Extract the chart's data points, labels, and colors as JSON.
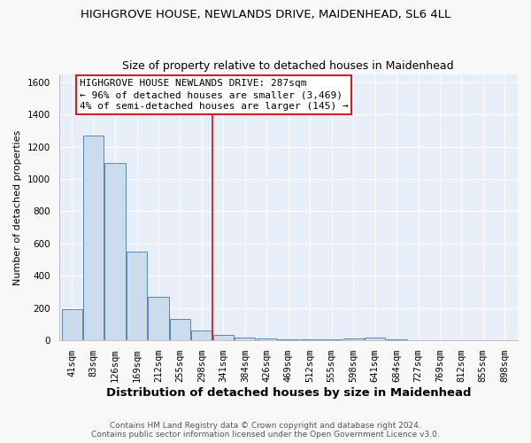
{
  "title1": "HIGHGROVE HOUSE, NEWLANDS DRIVE, MAIDENHEAD, SL6 4LL",
  "title2": "Size of property relative to detached houses in Maidenhead",
  "xlabel": "Distribution of detached houses by size in Maidenhead",
  "ylabel": "Number of detached properties",
  "footer1": "Contains HM Land Registry data © Crown copyright and database right 2024.",
  "footer2": "Contains public sector information licensed under the Open Government Licence v3.0.",
  "bar_labels": [
    "41sqm",
    "83sqm",
    "126sqm",
    "169sqm",
    "212sqm",
    "255sqm",
    "298sqm",
    "341sqm",
    "384sqm",
    "426sqm",
    "469sqm",
    "512sqm",
    "555sqm",
    "598sqm",
    "641sqm",
    "684sqm",
    "727sqm",
    "769sqm",
    "812sqm",
    "855sqm",
    "898sqm"
  ],
  "bar_values": [
    195,
    1270,
    1100,
    550,
    270,
    135,
    60,
    35,
    18,
    10,
    5,
    5,
    5,
    10,
    15,
    5,
    0,
    0,
    0,
    0,
    0
  ],
  "bar_color": "#ccdcec",
  "bar_edge_color": "#5588bb",
  "red_line_x": 6.5,
  "annotation_title": "HIGHGROVE HOUSE NEWLANDS DRIVE: 287sqm",
  "annotation_line1": "← 96% of detached houses are smaller (3,469)",
  "annotation_line2": "4% of semi-detached houses are larger (145) →",
  "ylim": [
    0,
    1650
  ],
  "yticks": [
    0,
    200,
    400,
    600,
    800,
    1000,
    1200,
    1400,
    1600
  ],
  "fig_bg_color": "#f8f8f8",
  "plot_bg_color": "#e8eef8",
  "grid_color": "#ffffff",
  "annotation_box_color": "#ffffff",
  "annotation_border_color": "#cc2222",
  "red_line_color": "#cc2222",
  "title_fontsize": 9.5,
  "xlabel_fontsize": 9.5,
  "ylabel_fontsize": 8,
  "tick_fontsize": 7.5,
  "annotation_fontsize": 8,
  "footer_fontsize": 6.5
}
